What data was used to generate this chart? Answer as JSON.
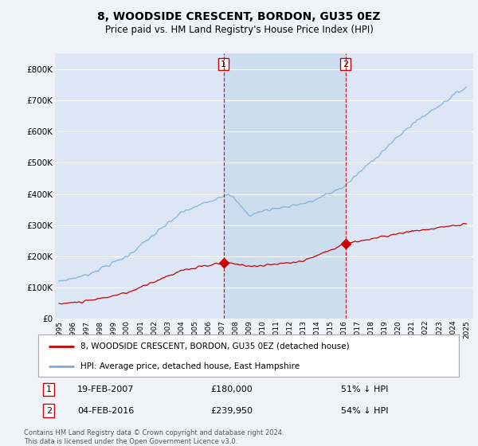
{
  "title": "8, WOODSIDE CRESCENT, BORDON, GU35 0EZ",
  "subtitle": "Price paid vs. HM Land Registry's House Price Index (HPI)",
  "legend_label_red": "8, WOODSIDE CRESCENT, BORDON, GU35 0EZ (detached house)",
  "legend_label_blue": "HPI: Average price, detached house, East Hampshire",
  "annotation1_date": "19-FEB-2007",
  "annotation1_price": "£180,000",
  "annotation1_pct": "51% ↓ HPI",
  "annotation1_year": 2007.12,
  "annotation1_value_red": 180000,
  "annotation2_date": "04-FEB-2016",
  "annotation2_price": "£239,950",
  "annotation2_pct": "54% ↓ HPI",
  "annotation2_year": 2016.09,
  "annotation2_value_red": 239950,
  "footer": "Contains HM Land Registry data © Crown copyright and database right 2024.\nThis data is licensed under the Open Government Licence v3.0.",
  "background_color": "#f0f4fa",
  "plot_bg_color": "#dce6f5",
  "grid_color": "#ffffff",
  "shade_color": "#cdddf0",
  "red_color": "#cc0000",
  "blue_color": "#7aadd4",
  "vline_color": "#cc0000",
  "ylim": [
    0,
    850000
  ],
  "yticks": [
    0,
    100000,
    200000,
    300000,
    400000,
    500000,
    600000,
    700000,
    800000
  ],
  "xlim_min": 1995.0,
  "xlim_max": 2025.5
}
